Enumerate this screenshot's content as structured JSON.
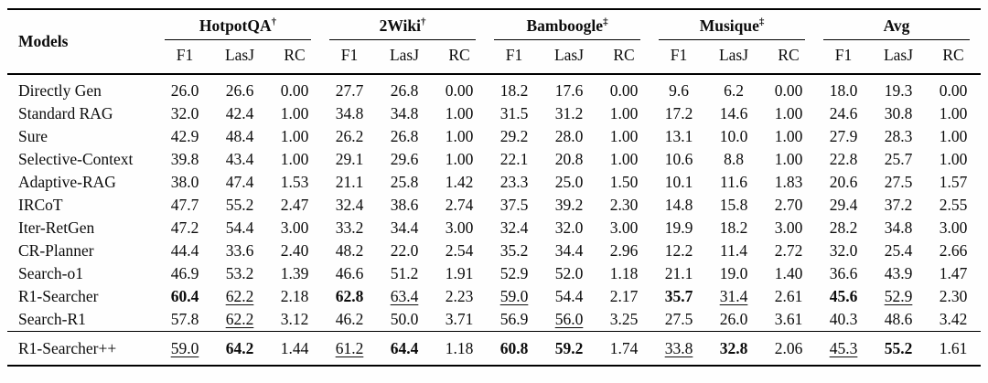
{
  "table": {
    "row_header": "Models",
    "groups": [
      {
        "id": "hotpotqa",
        "label": "HotpotQA",
        "sup": "†",
        "metrics": [
          "F1",
          "LasJ",
          "RC"
        ]
      },
      {
        "id": "2wiki",
        "label": "2Wiki",
        "sup": "†",
        "metrics": [
          "F1",
          "LasJ",
          "RC"
        ]
      },
      {
        "id": "bamboogle",
        "label": "Bamboogle",
        "sup": "‡",
        "metrics": [
          "F1",
          "LasJ",
          "RC"
        ]
      },
      {
        "id": "musique",
        "label": "Musique",
        "sup": "‡",
        "metrics": [
          "F1",
          "LasJ",
          "RC"
        ]
      },
      {
        "id": "avg",
        "label": "Avg",
        "sup": "",
        "metrics": [
          "F1",
          "LasJ",
          "RC"
        ]
      }
    ],
    "rows": [
      {
        "model": "Directly Gen",
        "values": [
          "26.0",
          "26.6",
          "0.00",
          "27.7",
          "26.8",
          "0.00",
          "18.2",
          "17.6",
          "0.00",
          "9.6",
          "6.2",
          "0.00",
          "18.0",
          "19.3",
          "0.00"
        ],
        "styles": [
          "",
          "",
          "",
          "",
          "",
          "",
          "",
          "",
          "",
          "",
          "",
          "",
          "",
          "",
          ""
        ]
      },
      {
        "model": "Standard RAG",
        "values": [
          "32.0",
          "42.4",
          "1.00",
          "34.8",
          "34.8",
          "1.00",
          "31.5",
          "31.2",
          "1.00",
          "17.2",
          "14.6",
          "1.00",
          "24.6",
          "30.8",
          "1.00"
        ],
        "styles": [
          "",
          "",
          "",
          "",
          "",
          "",
          "",
          "",
          "",
          "",
          "",
          "",
          "",
          "",
          ""
        ]
      },
      {
        "model": "Sure",
        "values": [
          "42.9",
          "48.4",
          "1.00",
          "26.2",
          "26.8",
          "1.00",
          "29.2",
          "28.0",
          "1.00",
          "13.1",
          "10.0",
          "1.00",
          "27.9",
          "28.3",
          "1.00"
        ],
        "styles": [
          "",
          "",
          "",
          "",
          "",
          "",
          "",
          "",
          "",
          "",
          "",
          "",
          "",
          "",
          ""
        ]
      },
      {
        "model": "Selective-Context",
        "values": [
          "39.8",
          "43.4",
          "1.00",
          "29.1",
          "29.6",
          "1.00",
          "22.1",
          "20.8",
          "1.00",
          "10.6",
          "8.8",
          "1.00",
          "22.8",
          "25.7",
          "1.00"
        ],
        "styles": [
          "",
          "",
          "",
          "",
          "",
          "",
          "",
          "",
          "",
          "",
          "",
          "",
          "",
          "",
          ""
        ]
      },
      {
        "model": "Adaptive-RAG",
        "values": [
          "38.0",
          "47.4",
          "1.53",
          "21.1",
          "25.8",
          "1.42",
          "23.3",
          "25.0",
          "1.50",
          "10.1",
          "11.6",
          "1.83",
          "20.6",
          "27.5",
          "1.57"
        ],
        "styles": [
          "",
          "",
          "",
          "",
          "",
          "",
          "",
          "",
          "",
          "",
          "",
          "",
          "",
          "",
          ""
        ]
      },
      {
        "model": "IRCoT",
        "values": [
          "47.7",
          "55.2",
          "2.47",
          "32.4",
          "38.6",
          "2.74",
          "37.5",
          "39.2",
          "2.30",
          "14.8",
          "15.8",
          "2.70",
          "29.4",
          "37.2",
          "2.55"
        ],
        "styles": [
          "",
          "",
          "",
          "",
          "",
          "",
          "",
          "",
          "",
          "",
          "",
          "",
          "",
          "",
          ""
        ]
      },
      {
        "model": "Iter-RetGen",
        "values": [
          "47.2",
          "54.4",
          "3.00",
          "33.2",
          "34.4",
          "3.00",
          "32.4",
          "32.0",
          "3.00",
          "19.9",
          "18.2",
          "3.00",
          "28.2",
          "34.8",
          "3.00"
        ],
        "styles": [
          "",
          "",
          "",
          "",
          "",
          "",
          "",
          "",
          "",
          "",
          "",
          "",
          "",
          "",
          ""
        ]
      },
      {
        "model": "CR-Planner",
        "values": [
          "44.4",
          "33.6",
          "2.40",
          "48.2",
          "22.0",
          "2.54",
          "35.2",
          "34.4",
          "2.96",
          "12.2",
          "11.4",
          "2.72",
          "32.0",
          "25.4",
          "2.66"
        ],
        "styles": [
          "",
          "",
          "",
          "",
          "",
          "",
          "",
          "",
          "",
          "",
          "",
          "",
          "",
          "",
          ""
        ]
      },
      {
        "model": "Search-o1",
        "values": [
          "46.9",
          "53.2",
          "1.39",
          "46.6",
          "51.2",
          "1.91",
          "52.9",
          "52.0",
          "1.18",
          "21.1",
          "19.0",
          "1.40",
          "36.6",
          "43.9",
          "1.47"
        ],
        "styles": [
          "",
          "",
          "",
          "",
          "",
          "",
          "",
          "",
          "",
          "",
          "",
          "",
          "",
          "",
          ""
        ]
      },
      {
        "model": "R1-Searcher",
        "values": [
          "60.4",
          "62.2",
          "2.18",
          "62.8",
          "63.4",
          "2.23",
          "59.0",
          "54.4",
          "2.17",
          "35.7",
          "31.4",
          "2.61",
          "45.6",
          "52.9",
          "2.30"
        ],
        "styles": [
          "b",
          "u",
          "",
          "b",
          "u",
          "",
          "u",
          "",
          "",
          "b",
          "u",
          "",
          "b",
          "u",
          ""
        ]
      },
      {
        "model": "Search-R1",
        "values": [
          "57.8",
          "62.2",
          "3.12",
          "46.2",
          "50.0",
          "3.71",
          "56.9",
          "56.0",
          "3.25",
          "27.5",
          "26.0",
          "3.61",
          "40.3",
          "48.6",
          "3.42"
        ],
        "styles": [
          "",
          "u",
          "",
          "",
          "",
          "",
          "",
          "u",
          "",
          "",
          "",
          "",
          "",
          "",
          ""
        ]
      }
    ],
    "final_row": {
      "model": "R1-Searcher++",
      "values": [
        "59.0",
        "64.2",
        "1.44",
        "61.2",
        "64.4",
        "1.18",
        "60.8",
        "59.2",
        "1.74",
        "33.8",
        "32.8",
        "2.06",
        "45.3",
        "55.2",
        "1.61"
      ],
      "styles": [
        "u",
        "b",
        "",
        "u",
        "b",
        "",
        "b",
        "b",
        "",
        "u",
        "b",
        "",
        "u",
        "b",
        ""
      ]
    }
  }
}
